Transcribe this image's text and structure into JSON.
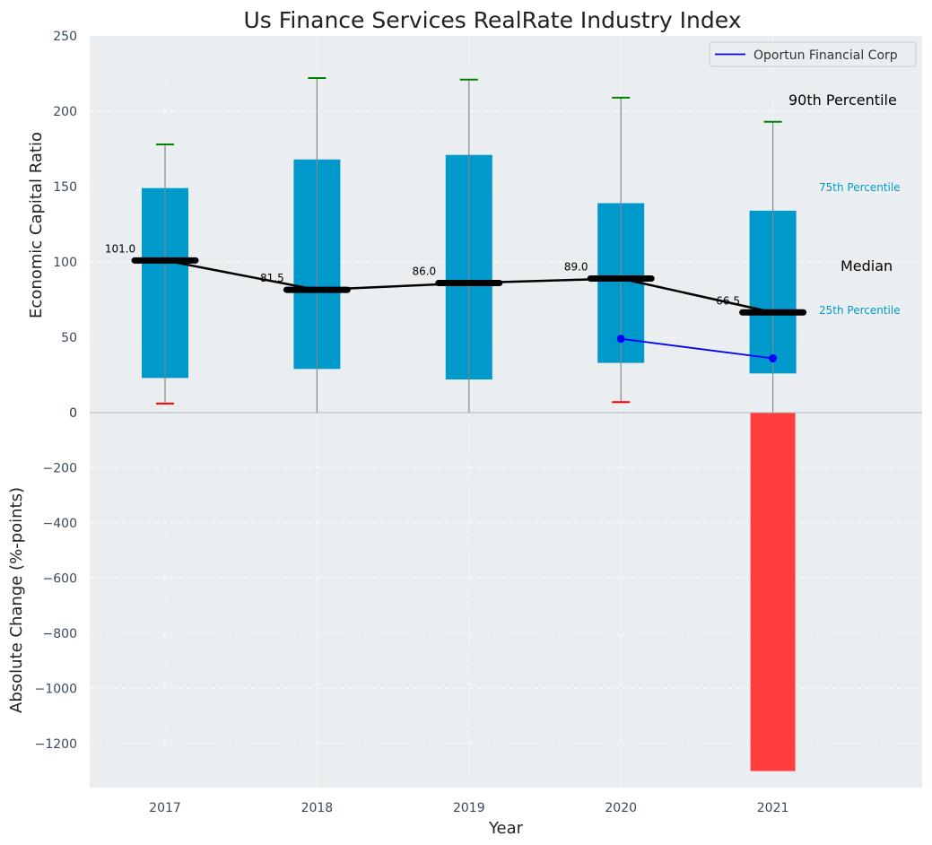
{
  "chart_data": {
    "title": "Us Finance Services RealRate Industry Index",
    "xlabel": "Year",
    "top_panel": {
      "type": "box",
      "ylabel": "Economic Capital Ratio",
      "ylim": [
        0,
        250
      ],
      "yticks": [
        "0",
        "50",
        "100",
        "150",
        "200",
        "250"
      ],
      "categories": [
        "2017",
        "2018",
        "2019",
        "2020",
        "2021"
      ],
      "p10": [
        6,
        0,
        0,
        7,
        0
      ],
      "p25": [
        23,
        29,
        22,
        33,
        26
      ],
      "median": [
        101.0,
        81.5,
        86.0,
        89.0,
        66.5
      ],
      "p75": [
        149,
        168,
        171,
        139,
        134
      ],
      "p90": [
        178,
        222,
        221,
        209,
        193
      ],
      "median_labels": [
        "101.0",
        "81.5",
        "86.0",
        "89.0",
        "66.5"
      ],
      "company_series": {
        "name": "Oportun Financial Corp",
        "x": [
          "2020",
          "2021"
        ],
        "values": [
          49,
          36
        ]
      },
      "annotations": {
        "p90": "90th Percentile",
        "p75": "75th Percentile",
        "median": "Median",
        "p25": "25th Percentile"
      },
      "legend_position": "top-right",
      "grid": true
    },
    "bottom_panel": {
      "type": "bar",
      "ylabel": "Absolute Change (%-points)",
      "ylim": [
        -1360,
        0
      ],
      "yticks": [
        "0",
        "−200",
        "−400",
        "−600",
        "−800",
        "−1000",
        "−1200"
      ],
      "categories": [
        "2017",
        "2018",
        "2019",
        "2020",
        "2021"
      ],
      "values": [
        0,
        0,
        0,
        0,
        -1300
      ],
      "grid": true
    },
    "colors": {
      "box": "#0099cc",
      "median_line": "#000000",
      "company": "#0000ff",
      "upper_cap": "#008000",
      "lower_cap": "#ff0000",
      "negative_bar": "#ff3d3d",
      "panel_bg": "#eaeef0"
    }
  }
}
